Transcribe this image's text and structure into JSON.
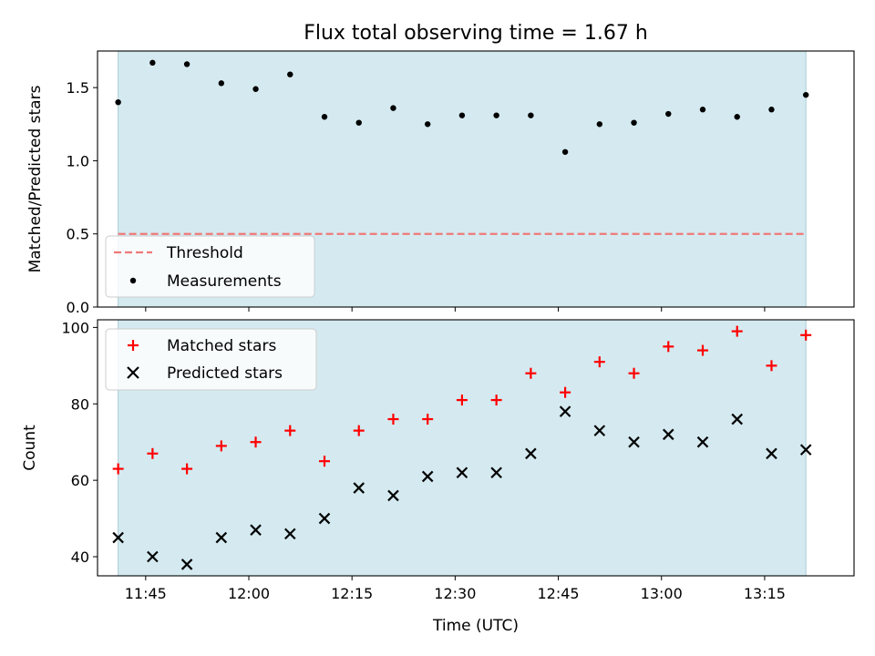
{
  "title": "Flux total observing time = 1.67 h",
  "colors": {
    "shade": "#d4eaf0",
    "threshold": "#f07878",
    "measurement": "#000000",
    "matched": "#ff0000",
    "predicted": "#000000",
    "legend_bg": "#ffffff"
  },
  "chart_data": [
    {
      "type": "scatter",
      "panel": "top",
      "ylabel": "Matched/Predicted stars",
      "xlim": [
        "11:38",
        "13:28"
      ],
      "ylim": [
        0,
        1.75
      ],
      "yticks": [
        0.0,
        0.5,
        1.0,
        1.5
      ],
      "ytick_labels": [
        "0.0",
        "0.5",
        "1.0",
        "1.5"
      ],
      "shaded_span": [
        "11:41",
        "13:21"
      ],
      "threshold": {
        "name": "Threshold",
        "y": 0.5,
        "x_range": [
          "11:41",
          "13:21"
        ]
      },
      "legend_placement": "lower-left",
      "series": [
        {
          "name": "Measurements",
          "x": [
            "11:41",
            "11:46",
            "11:51",
            "11:56",
            "12:01",
            "12:06",
            "12:11",
            "12:16",
            "12:21",
            "12:26",
            "12:31",
            "12:36",
            "12:41",
            "12:46",
            "12:51",
            "12:56",
            "13:01",
            "13:06",
            "13:11",
            "13:16",
            "13:21"
          ],
          "y": [
            1.4,
            1.67,
            1.66,
            1.53,
            1.49,
            1.59,
            1.3,
            1.26,
            1.36,
            1.25,
            1.31,
            1.31,
            1.31,
            1.06,
            1.25,
            1.26,
            1.32,
            1.35,
            1.3,
            1.35,
            1.45
          ]
        }
      ]
    },
    {
      "type": "scatter",
      "panel": "bottom",
      "xlabel": "Time (UTC)",
      "ylabel": "Count",
      "xlim": [
        "11:38",
        "13:28"
      ],
      "ylim": [
        35,
        102
      ],
      "xticks": [
        "11:45",
        "12:00",
        "12:15",
        "12:30",
        "12:45",
        "13:00",
        "13:15"
      ],
      "yticks": [
        40,
        60,
        80,
        100
      ],
      "ytick_labels": [
        "40",
        "60",
        "80",
        "100"
      ],
      "shaded_span": [
        "11:41",
        "13:21"
      ],
      "legend_placement": "upper-left",
      "x": [
        "11:41",
        "11:46",
        "11:51",
        "11:56",
        "12:01",
        "12:06",
        "12:11",
        "12:16",
        "12:21",
        "12:26",
        "12:31",
        "12:36",
        "12:41",
        "12:46",
        "12:51",
        "12:56",
        "13:01",
        "13:06",
        "13:11",
        "13:16",
        "13:21"
      ],
      "series": [
        {
          "name": "Matched stars",
          "marker": "+",
          "values": [
            63,
            67,
            63,
            69,
            70,
            73,
            65,
            73,
            76,
            76,
            81,
            81,
            88,
            83,
            91,
            88,
            95,
            94,
            99,
            90,
            98
          ]
        },
        {
          "name": "Predicted stars",
          "marker": "x",
          "values": [
            45,
            40,
            38,
            45,
            47,
            46,
            50,
            58,
            56,
            61,
            62,
            62,
            67,
            78,
            73,
            70,
            72,
            70,
            76,
            67,
            68
          ]
        }
      ]
    }
  ]
}
